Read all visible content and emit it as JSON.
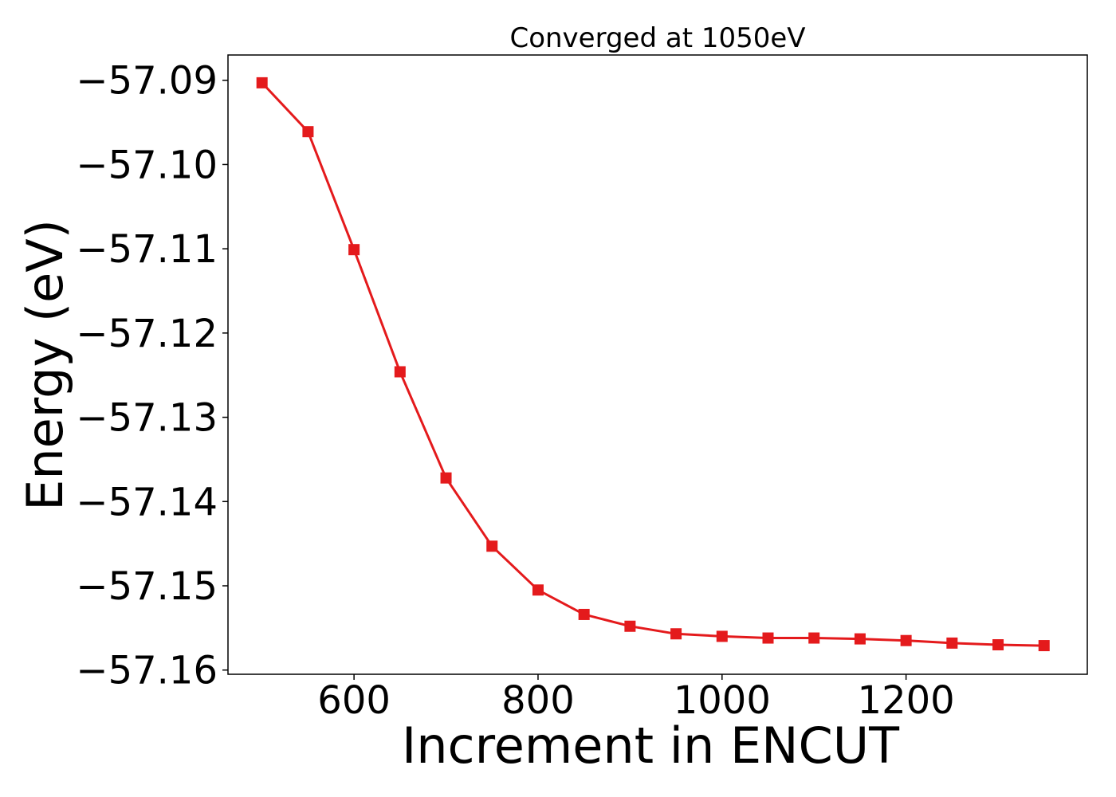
{
  "chart_data": {
    "type": "line",
    "title": "Converged at 1050eV",
    "xlabel": "Increment in ENCUT",
    "ylabel": "Energy (eV)",
    "xlim": [
      463,
      1397
    ],
    "ylim": [
      -57.1605,
      -57.087
    ],
    "x_ticks": [
      600,
      800,
      1000,
      1200
    ],
    "y_ticks": [
      -57.09,
      -57.1,
      -57.11,
      -57.12,
      -57.13,
      -57.14,
      -57.15,
      -57.16
    ],
    "y_tick_labels": [
      "−57.09",
      "−57.10",
      "−57.11",
      "−57.12",
      "−57.13",
      "−57.14",
      "−57.15",
      "−57.16"
    ],
    "grid": false,
    "color": "#e41a1c",
    "marker": "square",
    "series": [
      {
        "x": [
          500,
          550,
          600,
          650,
          700,
          750,
          800,
          850,
          900,
          950,
          1000,
          1050,
          1100,
          1150,
          1200,
          1250,
          1300,
          1350
        ],
        "values": [
          -57.0903,
          -57.0961,
          -57.1101,
          -57.1246,
          -57.1372,
          -57.1453,
          -57.1505,
          -57.1534,
          -57.1548,
          -57.1557,
          -57.156,
          -57.1562,
          -57.1562,
          -57.1563,
          -57.1565,
          -57.1568,
          -57.157,
          -57.1571
        ]
      }
    ]
  }
}
